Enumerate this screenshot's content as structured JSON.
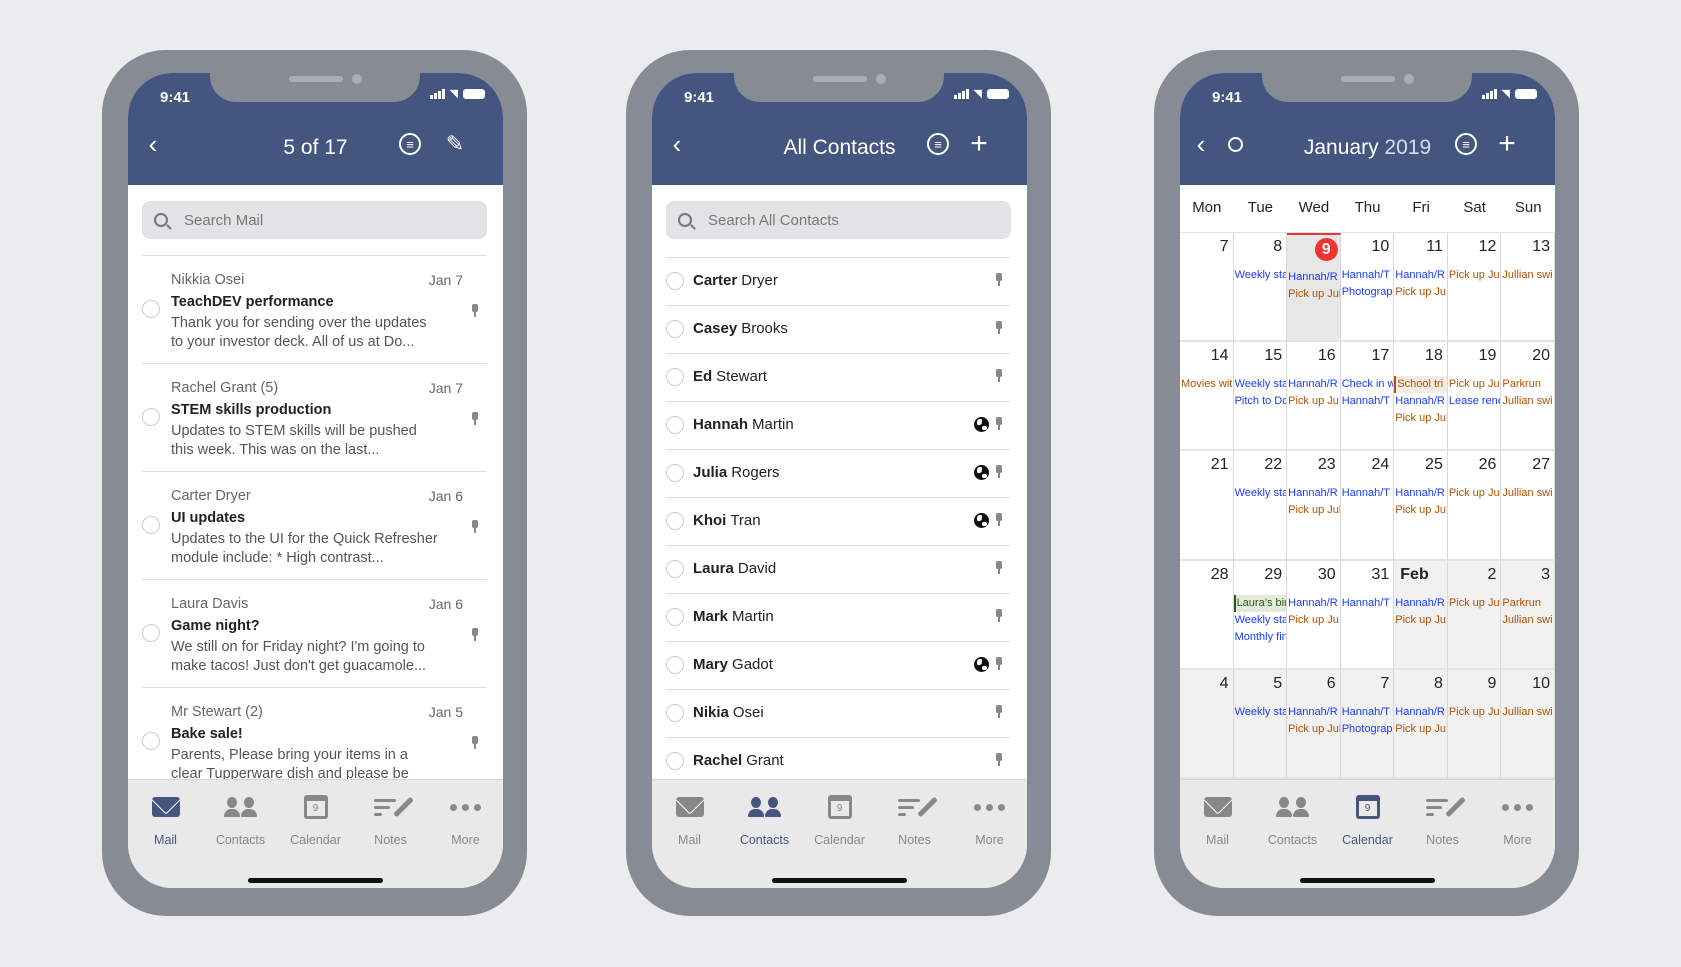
{
  "colors": {
    "header": "#44557f",
    "accent": "#44557f",
    "today": "#ef3333",
    "event_blue": "#1a3cff",
    "event_orange": "#b35000",
    "event_green": "#2a5a10"
  },
  "status_time": "9:41",
  "tabs": [
    {
      "label": "Mail",
      "icon": "mail-icon"
    },
    {
      "label": "Contacts",
      "icon": "contacts-icon"
    },
    {
      "label": "Calendar",
      "icon": "calendar-icon",
      "badge": "9"
    },
    {
      "label": "Notes",
      "icon": "notes-icon"
    },
    {
      "label": "More",
      "icon": "more-icon"
    }
  ],
  "mail": {
    "title": "5 of 17",
    "search_placeholder": "Search Mail",
    "active_tab": "Mail",
    "items": [
      {
        "from": "Nikkia Osei",
        "date": "Jan 7",
        "subject": "TeachDEV performance",
        "preview": "Thank you for sending over the updates to your investor deck. All of us at Do..."
      },
      {
        "from": "Rachel Grant (5)",
        "date": "Jan 7",
        "subject": "STEM skills production",
        "preview": "Updates to STEM skills will be pushed this week. This was on the last..."
      },
      {
        "from": "Carter Dryer",
        "date": "Jan 6",
        "subject": "UI updates",
        "preview": "Updates to the UI for the Quick Refresher module include:   * High contrast..."
      },
      {
        "from": "Laura Davis",
        "date": "Jan 6",
        "subject": "Game night?",
        "preview": "We still on for Friday night? I'm going to make tacos! Just don't get guacamole..."
      },
      {
        "from": "Mr Stewart (2)",
        "date": "Jan 5",
        "subject": "Bake sale!",
        "preview": "Parents, Please bring your items in a clear Tupperware dish and please be sure..."
      }
    ]
  },
  "contacts": {
    "title": "All Contacts",
    "search_placeholder": "Search All Contacts",
    "active_tab": "Contacts",
    "items": [
      {
        "first": "Carter",
        "last": "Dryer",
        "globe": false
      },
      {
        "first": "Casey",
        "last": "Brooks",
        "globe": false
      },
      {
        "first": "Ed",
        "last": "Stewart",
        "globe": false
      },
      {
        "first": "Hannah",
        "last": "Martin",
        "globe": true
      },
      {
        "first": "Julia",
        "last": "Rogers",
        "globe": true
      },
      {
        "first": "Khoi",
        "last": "Tran",
        "globe": true
      },
      {
        "first": "Laura",
        "last": "David",
        "globe": false
      },
      {
        "first": "Mark",
        "last": "Martin",
        "globe": false
      },
      {
        "first": "Mary",
        "last": "Gadot",
        "globe": true
      },
      {
        "first": "Nikia",
        "last": "Osei",
        "globe": false
      },
      {
        "first": "Rachel",
        "last": "Grant",
        "globe": false
      }
    ]
  },
  "calendar": {
    "title_month": "January",
    "title_year": "2019",
    "active_tab": "Calendar",
    "weekdays": [
      "Mon",
      "Tue",
      "Wed",
      "Thu",
      "Fri",
      "Sat",
      "Sun"
    ],
    "cells": [
      {
        "day": "7",
        "events": []
      },
      {
        "day": "8",
        "events": [
          {
            "text": "Weekly sta",
            "kind": "blue"
          }
        ]
      },
      {
        "day": "9",
        "today": true,
        "events": [
          {
            "text": "Hannah/R",
            "kind": "blue"
          },
          {
            "text": "Pick up Jul",
            "kind": "orange"
          }
        ]
      },
      {
        "day": "10",
        "events": [
          {
            "text": "Hannah/T",
            "kind": "blue"
          },
          {
            "text": "Photograp",
            "kind": "blue"
          }
        ]
      },
      {
        "day": "11",
        "events": [
          {
            "text": "Hannah/R",
            "kind": "blue"
          },
          {
            "text": "Pick up Ju",
            "kind": "orange"
          }
        ]
      },
      {
        "day": "12",
        "events": [
          {
            "text": "Pick up Ju",
            "kind": "orange"
          }
        ]
      },
      {
        "day": "13",
        "events": [
          {
            "text": "Jullian swi",
            "kind": "orange"
          }
        ]
      },
      {
        "day": "14",
        "events": [
          {
            "text": "Movies wit",
            "kind": "orange"
          }
        ]
      },
      {
        "day": "15",
        "events": [
          {
            "text": "Weekly sta",
            "kind": "blue"
          },
          {
            "text": "Pitch to Do",
            "kind": "blue"
          }
        ]
      },
      {
        "day": "16",
        "events": [
          {
            "text": "Hannah/R",
            "kind": "blue"
          },
          {
            "text": "Pick up Ju",
            "kind": "orange"
          }
        ]
      },
      {
        "day": "17",
        "events": [
          {
            "text": "Check in w",
            "kind": "blue"
          },
          {
            "text": "Hannah/T",
            "kind": "blue"
          }
        ]
      },
      {
        "day": "18",
        "events": [
          {
            "text": "School tri",
            "kind": "tag"
          },
          {
            "text": "Hannah/R",
            "kind": "blue"
          },
          {
            "text": "Pick up Ju",
            "kind": "orange"
          }
        ]
      },
      {
        "day": "19",
        "events": [
          {
            "text": "Pick up Ju",
            "kind": "orange"
          },
          {
            "text": "Lease rene",
            "kind": "blue"
          }
        ]
      },
      {
        "day": "20",
        "events": [
          {
            "text": "Parkrun",
            "kind": "orange"
          },
          {
            "text": "Jullian swi",
            "kind": "orange"
          }
        ]
      },
      {
        "day": "21",
        "events": []
      },
      {
        "day": "22",
        "events": [
          {
            "text": "Weekly sta",
            "kind": "blue"
          }
        ]
      },
      {
        "day": "23",
        "events": [
          {
            "text": "Hannah/R",
            "kind": "blue"
          },
          {
            "text": "Pick up Jul",
            "kind": "orange"
          }
        ]
      },
      {
        "day": "24",
        "events": [
          {
            "text": "Hannah/T",
            "kind": "blue"
          }
        ]
      },
      {
        "day": "25",
        "events": [
          {
            "text": "Hannah/R",
            "kind": "blue"
          },
          {
            "text": "Pick up Ju",
            "kind": "orange"
          }
        ]
      },
      {
        "day": "26",
        "events": [
          {
            "text": "Pick up Ju",
            "kind": "orange"
          }
        ]
      },
      {
        "day": "27",
        "events": [
          {
            "text": "Jullian swi",
            "kind": "orange"
          }
        ]
      },
      {
        "day": "28",
        "events": []
      },
      {
        "day": "29",
        "events": [
          {
            "text": "Laura’s bir",
            "kind": "green"
          },
          {
            "text": "Weekly sta",
            "kind": "blue"
          },
          {
            "text": "Monthly fin",
            "kind": "blue"
          }
        ]
      },
      {
        "day": "30",
        "events": [
          {
            "text": "Hannah/R",
            "kind": "blue"
          },
          {
            "text": "Pick up Ju",
            "kind": "orange"
          }
        ]
      },
      {
        "day": "31",
        "events": [
          {
            "text": "Hannah/T",
            "kind": "blue"
          }
        ]
      },
      {
        "day": "Feb",
        "bold": true,
        "other_month": true,
        "events": [
          {
            "text": "Hannah/R",
            "kind": "blue"
          },
          {
            "text": "Pick up Ju",
            "kind": "orange"
          }
        ]
      },
      {
        "day": "2",
        "other_month": true,
        "events": [
          {
            "text": "Pick up Ju",
            "kind": "orange"
          }
        ]
      },
      {
        "day": "3",
        "other_month": true,
        "events": [
          {
            "text": "Parkrun",
            "kind": "orange"
          },
          {
            "text": "Jullian swi",
            "kind": "orange"
          }
        ]
      },
      {
        "day": "4",
        "other_month": true,
        "events": []
      },
      {
        "day": "5",
        "other_month": true,
        "events": [
          {
            "text": "Weekly sta",
            "kind": "blue"
          }
        ]
      },
      {
        "day": "6",
        "other_month": true,
        "events": [
          {
            "text": "Hannah/R",
            "kind": "blue"
          },
          {
            "text": "Pick up Jul",
            "kind": "orange"
          }
        ]
      },
      {
        "day": "7",
        "other_month": true,
        "events": [
          {
            "text": "Hannah/T",
            "kind": "blue"
          },
          {
            "text": "Photograp",
            "kind": "blue"
          }
        ]
      },
      {
        "day": "8",
        "other_month": true,
        "events": [
          {
            "text": "Hannah/R",
            "kind": "blue"
          },
          {
            "text": "Pick up Ju",
            "kind": "orange"
          }
        ]
      },
      {
        "day": "9",
        "other_month": true,
        "events": [
          {
            "text": "Pick up Ju",
            "kind": "orange"
          }
        ]
      },
      {
        "day": "10",
        "other_month": true,
        "events": [
          {
            "text": "Jullian swi",
            "kind": "orange"
          }
        ]
      }
    ]
  }
}
